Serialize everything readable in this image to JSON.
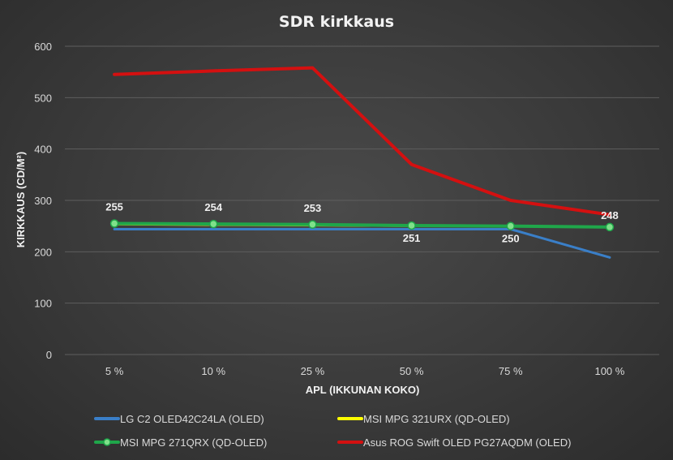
{
  "chart_data": {
    "type": "line",
    "title": "SDR kirkkaus",
    "xlabel": "APL (IKKUNAN KOKO)",
    "ylabel": "KIRKKAUS (CD/M²)",
    "ylim": [
      0,
      600
    ],
    "yticks": [
      0,
      100,
      200,
      300,
      400,
      500,
      600
    ],
    "categories": [
      "5 %",
      "10 %",
      "25 %",
      "50 %",
      "75 %",
      "100 %"
    ],
    "grid": true,
    "legend_position": "bottom",
    "series": [
      {
        "name": "LG C2 OLED42C24LA (OLED)",
        "color": "#3a7fc8",
        "values": [
          244,
          244,
          244,
          244,
          244,
          189
        ],
        "markers": false
      },
      {
        "name": "MSI MPG 321URX (QD-OLED)",
        "color": "#ffff00",
        "values": [
          253,
          252,
          251,
          250,
          249,
          248
        ],
        "markers": false
      },
      {
        "name": "MSI MPG 271QRX (QD-OLED)",
        "color": "#1fa64a",
        "label_color": "#1fa64a",
        "values": [
          255,
          254,
          253,
          251,
          250,
          248
        ],
        "markers": true,
        "data_labels": [
          "255",
          "254",
          "253",
          "251",
          "250",
          "248"
        ]
      },
      {
        "name": "Asus ROG Swift OLED PG27AQDM (OLED)",
        "color": "#d41010",
        "values": [
          545,
          552,
          558,
          370,
          300,
          272
        ],
        "markers": false
      }
    ]
  }
}
